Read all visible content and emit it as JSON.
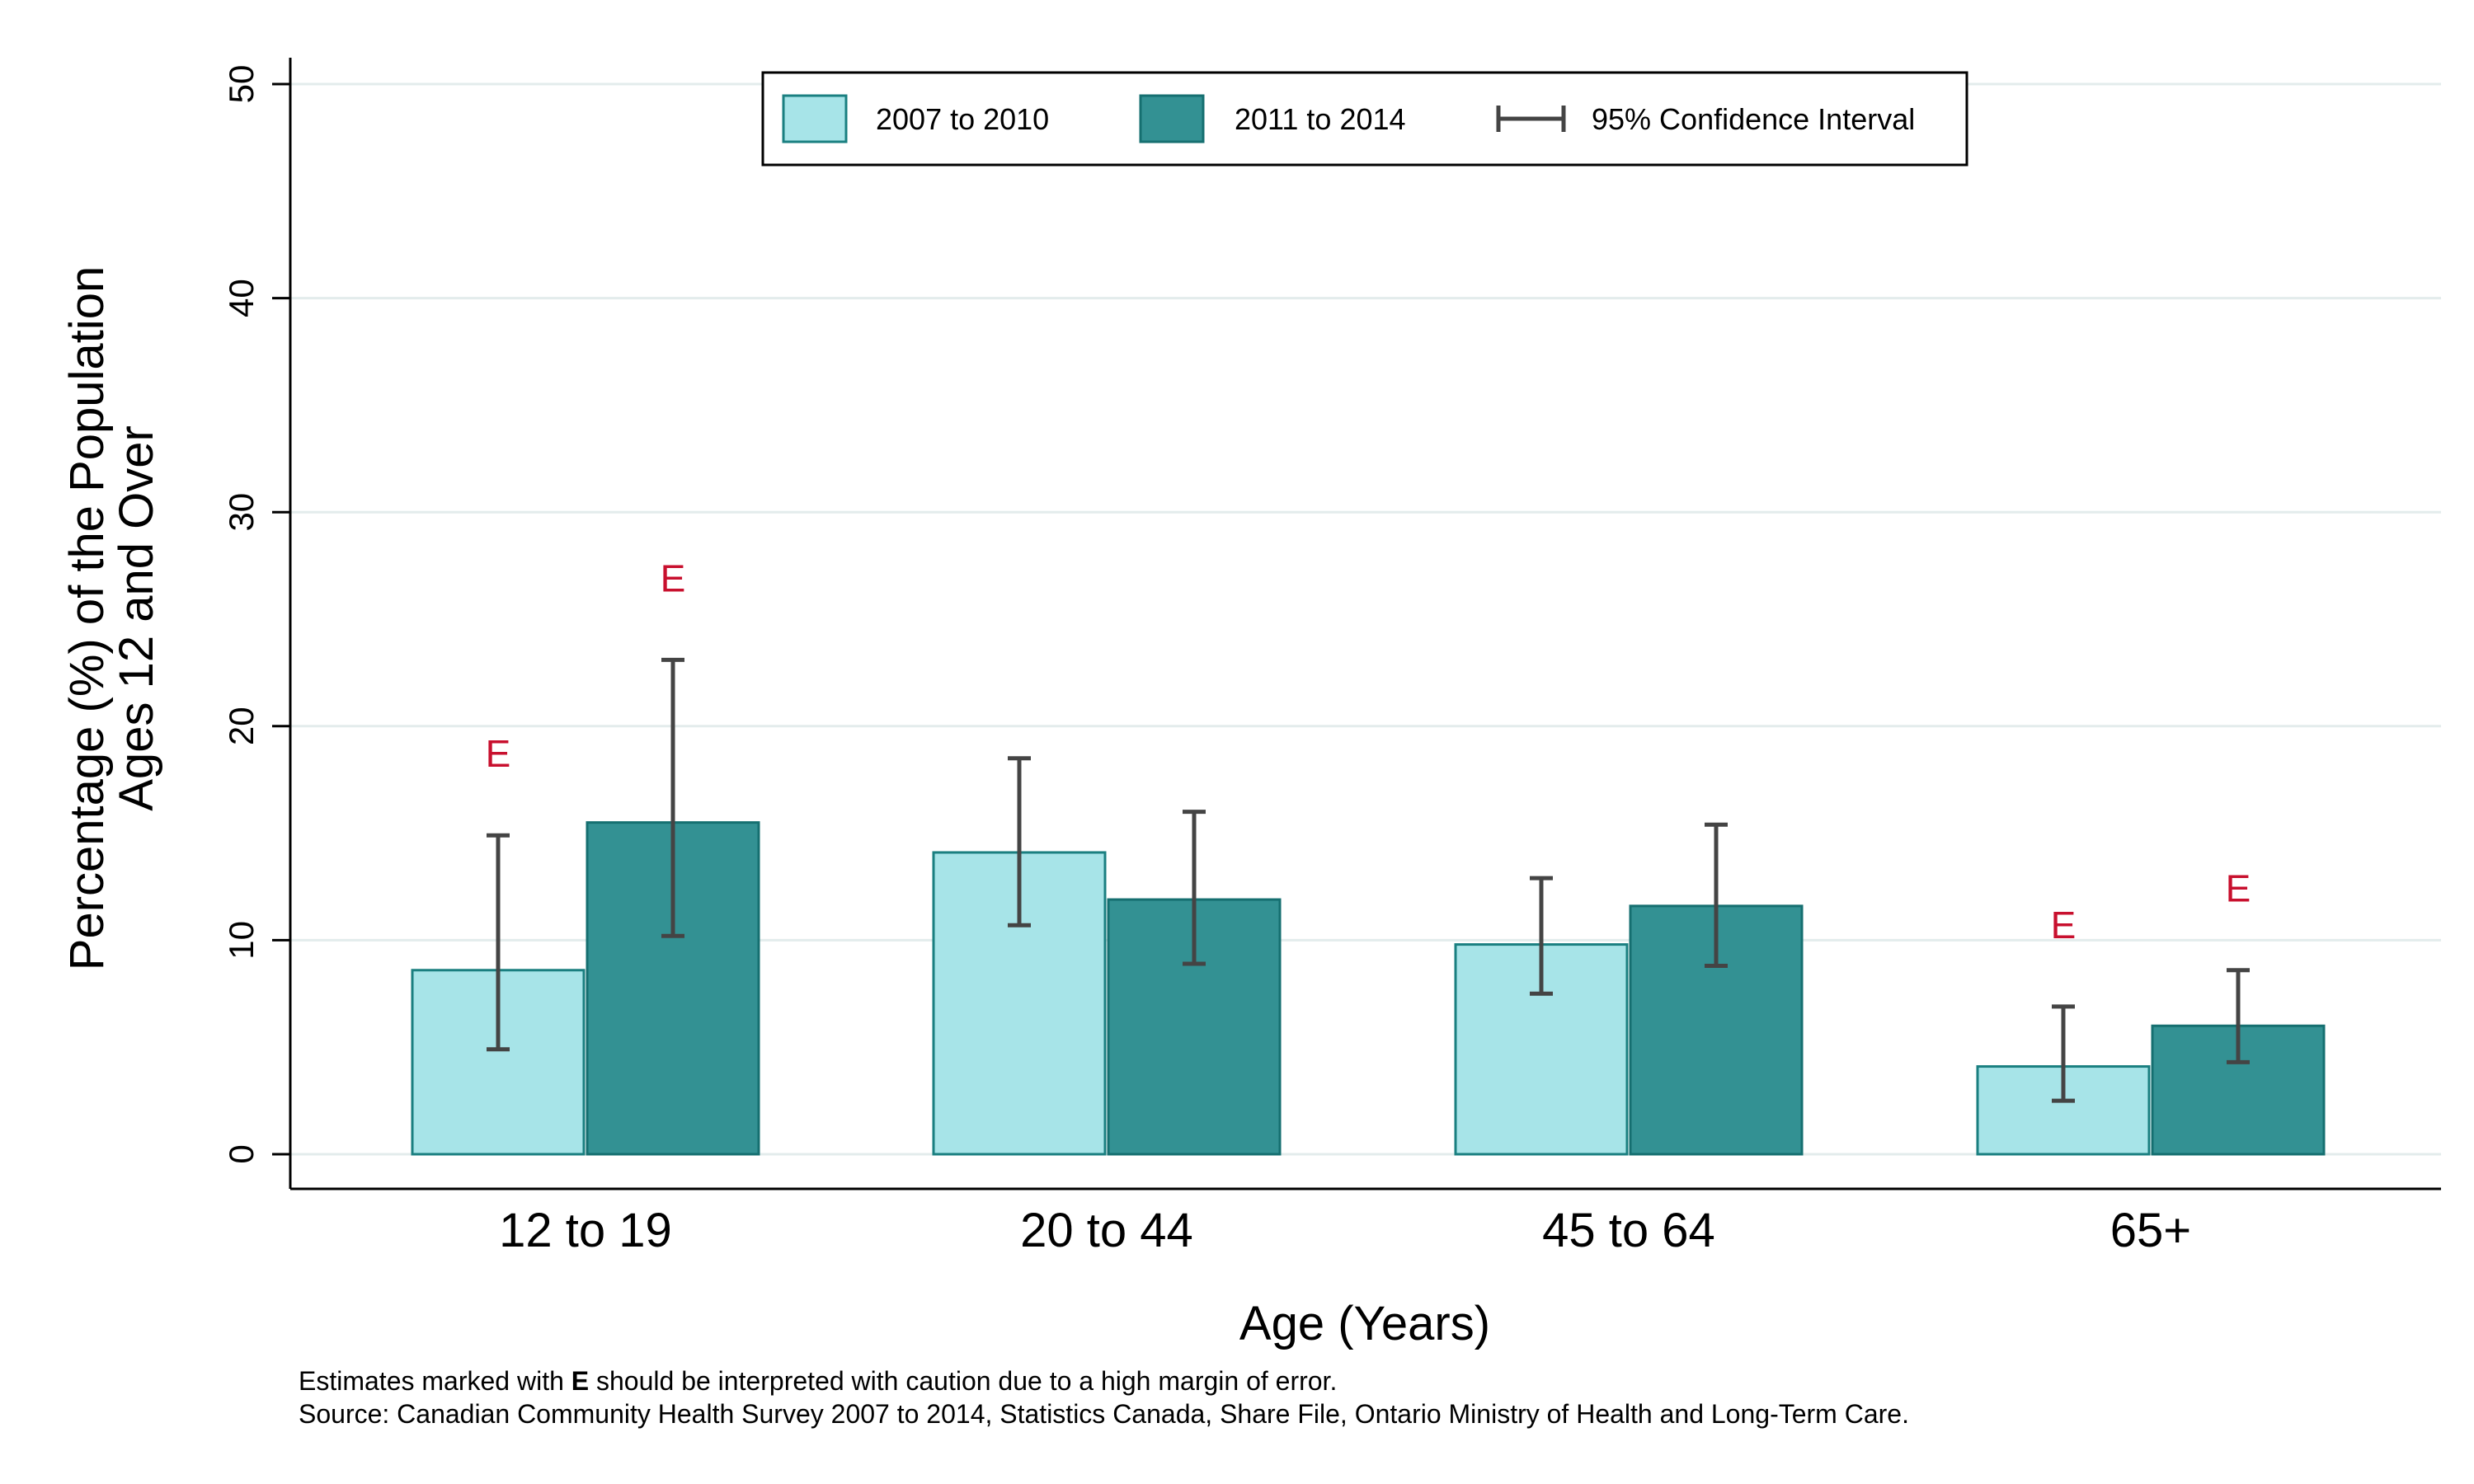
{
  "chart_data": {
    "type": "bar",
    "title": "",
    "xlabel": "Age (Years)",
    "ylabel_line1": "Percentage (%) of the Population",
    "ylabel_line2": "Ages 12 and Over",
    "ylim": [
      0,
      50
    ],
    "yticks": [
      "0",
      "10",
      "20",
      "30",
      "40",
      "50"
    ],
    "grid": true,
    "legend_position": "top-center",
    "categories": [
      "12 to 19",
      "20 to 44",
      "45 to 64",
      "65+"
    ],
    "series": [
      {
        "name": "2007 to 2010",
        "color": "#a7e4e8",
        "stroke": "#1a7f80",
        "values": [
          8.6,
          14.1,
          9.8,
          4.1
        ],
        "ci_low": [
          4.9,
          10.7,
          7.5,
          2.5
        ],
        "ci_high": [
          14.9,
          18.5,
          12.9,
          6.9
        ],
        "flags": [
          "E",
          "",
          "",
          "E"
        ]
      },
      {
        "name": "2011 to 2014",
        "color": "#339193",
        "stroke": "#156f70",
        "values": [
          15.5,
          11.9,
          11.6,
          6.0
        ],
        "ci_low": [
          10.2,
          8.9,
          8.8,
          4.3
        ],
        "ci_high": [
          23.1,
          16.0,
          15.4,
          8.6
        ],
        "flags": [
          "E",
          "",
          "",
          "E"
        ]
      }
    ],
    "ci_legend_label": "95% Confidence Interval",
    "ci_color": "#444444",
    "flag_color": "#c8102e",
    "grid_color": "#e3ecec"
  },
  "footnote": {
    "line1_prefix": "Estimates marked with ",
    "line1_bold": "E",
    "line1_suffix": " should be interpreted with caution due to a high margin of error.",
    "line2": "Source: Canadian Community Health Survey 2007 to 2014, Statistics Canada, Share File, Ontario Ministry of Health and Long-Term Care."
  }
}
